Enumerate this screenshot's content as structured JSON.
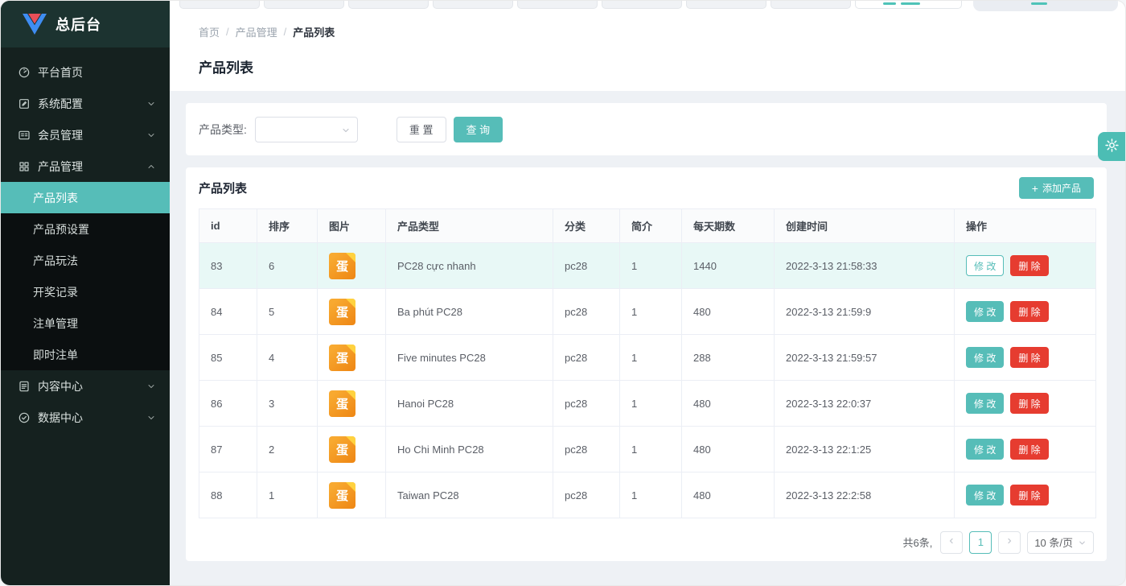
{
  "colors": {
    "accent": "#56bdb8",
    "danger": "#e63c30",
    "sidebar_active_bg": "#56bdb8"
  },
  "sidebar": {
    "title": "总后台",
    "items": [
      {
        "name": "platform-home",
        "label": "平台首页",
        "icon": "dashboard",
        "expandable": false
      },
      {
        "name": "system-config",
        "label": "系统配置",
        "icon": "edit-square",
        "expandable": true,
        "expanded": false
      },
      {
        "name": "member-management",
        "label": "会员管理",
        "icon": "id-card",
        "expandable": true,
        "expanded": false
      },
      {
        "name": "product-management",
        "label": "产品管理",
        "icon": "grid",
        "expandable": true,
        "expanded": true,
        "children": [
          {
            "name": "product-list",
            "label": "产品列表",
            "active": true
          },
          {
            "name": "product-preset",
            "label": "产品预设置",
            "active": false
          },
          {
            "name": "product-play",
            "label": "产品玩法",
            "active": false
          },
          {
            "name": "draw-records",
            "label": "开奖记录",
            "active": false
          },
          {
            "name": "bet-management",
            "label": "注单管理",
            "active": false
          },
          {
            "name": "realtime-bets",
            "label": "即时注单",
            "active": false
          }
        ]
      },
      {
        "name": "content-center",
        "label": "内容中心",
        "icon": "document",
        "expandable": true,
        "expanded": false
      },
      {
        "name": "data-center",
        "label": "数据中心",
        "icon": "check-circle",
        "expandable": true,
        "expanded": false
      }
    ]
  },
  "breadcrumb": {
    "items": [
      "首页",
      "产品管理",
      "产品列表"
    ],
    "separator": "/"
  },
  "page": {
    "title": "产品列表"
  },
  "filter": {
    "label": "产品类型:",
    "select_value": "",
    "reset_label": "重 置",
    "search_label": "查 询"
  },
  "list": {
    "title": "产品列表",
    "add_button_label": "添加产品",
    "columns": [
      "id",
      "排序",
      "图片",
      "产品类型",
      "分类",
      "简介",
      "每天期数",
      "创建时间",
      "操作"
    ],
    "image_glyph": "蛋",
    "actions": {
      "edit": "修 改",
      "delete": "删 除"
    },
    "rows": [
      {
        "id": "83",
        "sort": "6",
        "product_type": "PC28 cực nhanh",
        "category": "pc28",
        "intro": "1",
        "daily_periods": "1440",
        "created_at": "2022-3-13 21:58:33",
        "highlighted": true
      },
      {
        "id": "84",
        "sort": "5",
        "product_type": "Ba phút PC28",
        "category": "pc28",
        "intro": "1",
        "daily_periods": "480",
        "created_at": "2022-3-13 21:59:9",
        "highlighted": false
      },
      {
        "id": "85",
        "sort": "4",
        "product_type": "Five minutes PC28",
        "category": "pc28",
        "intro": "1",
        "daily_periods": "288",
        "created_at": "2022-3-13 21:59:57",
        "highlighted": false
      },
      {
        "id": "86",
        "sort": "3",
        "product_type": "Hanoi PC28",
        "category": "pc28",
        "intro": "1",
        "daily_periods": "480",
        "created_at": "2022-3-13 22:0:37",
        "highlighted": false
      },
      {
        "id": "87",
        "sort": "2",
        "product_type": "Ho Chi Minh PC28",
        "category": "pc28",
        "intro": "1",
        "daily_periods": "480",
        "created_at": "2022-3-13 22:1:25",
        "highlighted": false
      },
      {
        "id": "88",
        "sort": "1",
        "product_type": "Taiwan PC28",
        "category": "pc28",
        "intro": "1",
        "daily_periods": "480",
        "created_at": "2022-3-13 22:2:58",
        "highlighted": false
      }
    ],
    "pagination": {
      "total": "共6条,",
      "current_page": "1",
      "page_size": "10 条/页"
    }
  }
}
